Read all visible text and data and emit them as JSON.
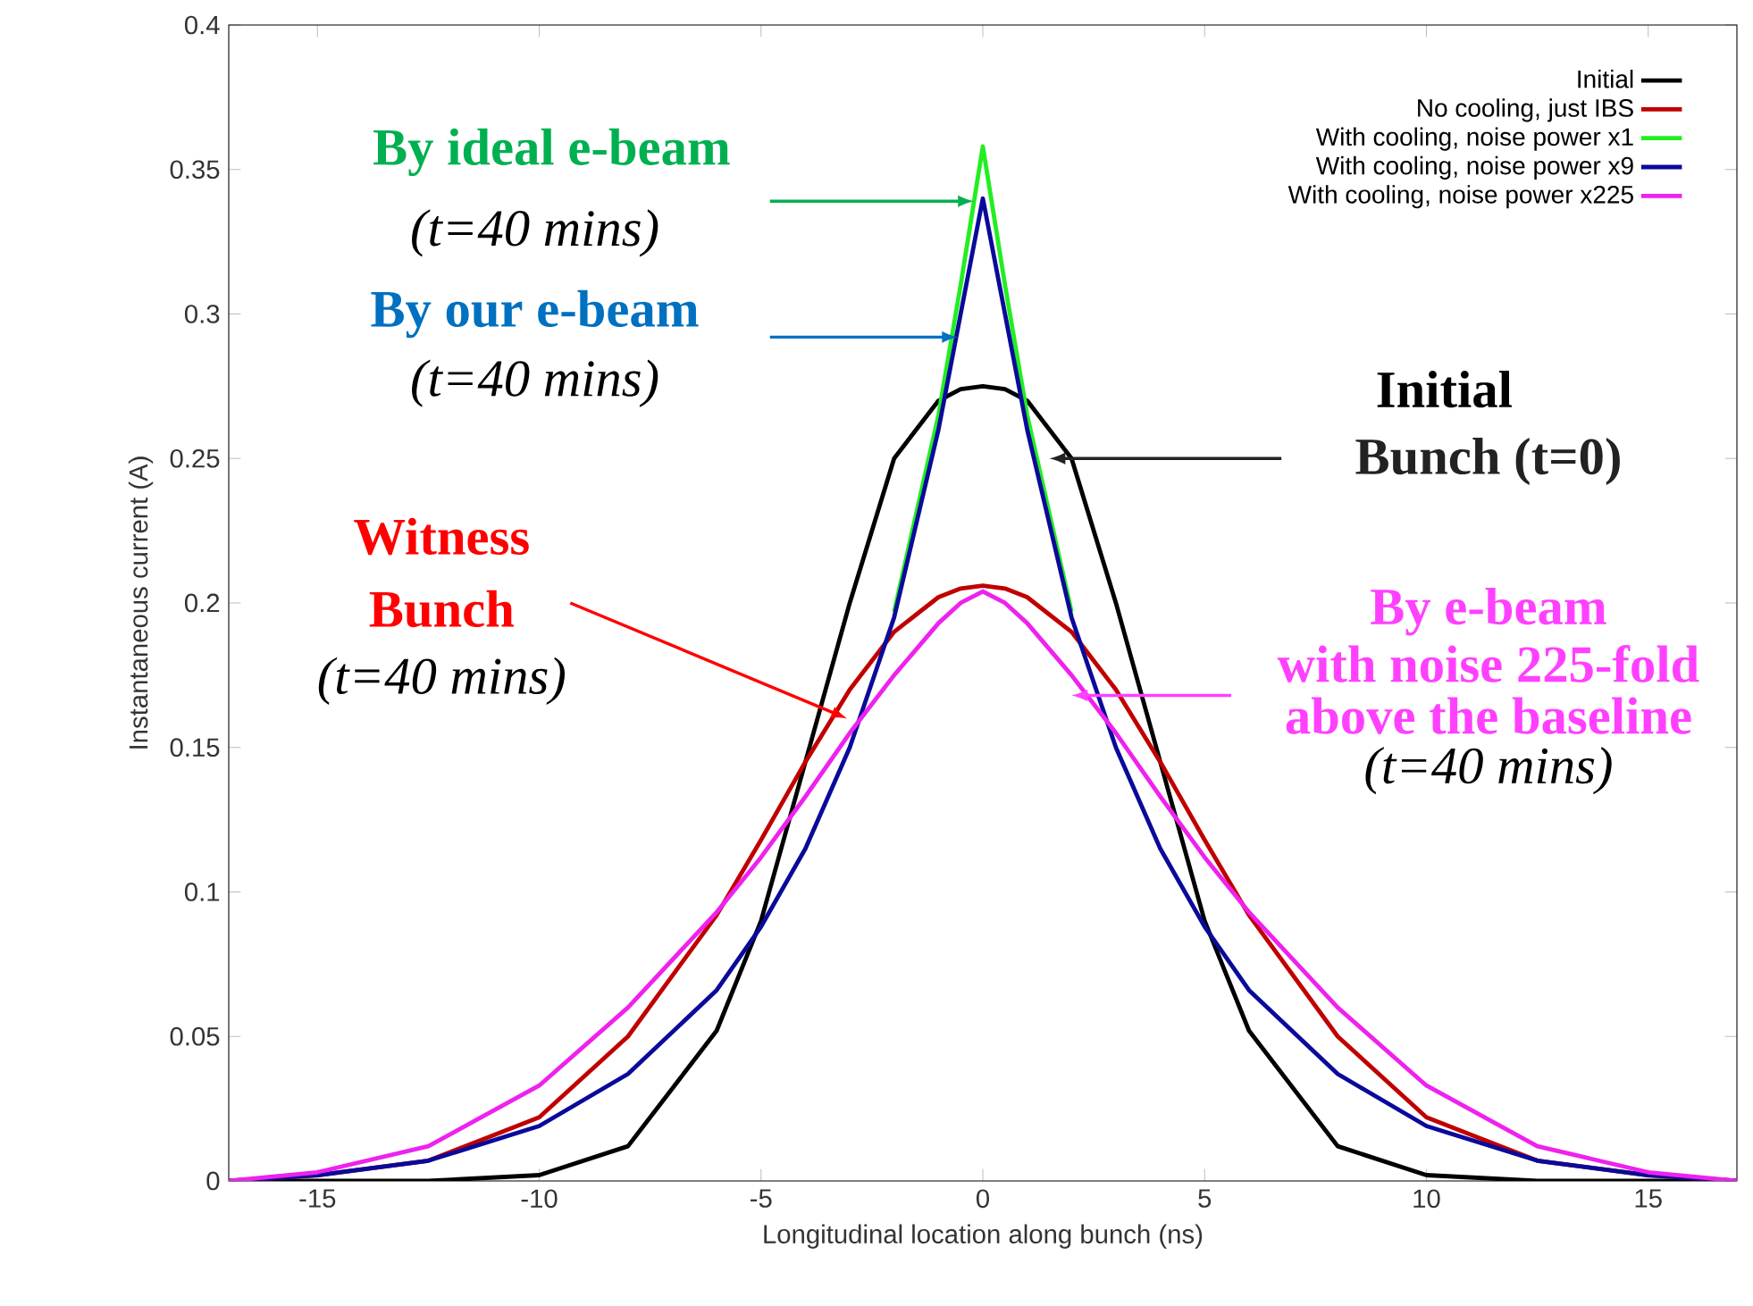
{
  "chart_data": {
    "type": "line",
    "xlabel": "Longitudinal location along bunch (ns)",
    "ylabel": "Instantaneous current (A)",
    "x": [
      -17,
      -15,
      -12.5,
      -10,
      -8,
      -6,
      -5,
      -4,
      -3,
      -2,
      -1,
      -0.5,
      0,
      0.5,
      1,
      2,
      3,
      4,
      5,
      6,
      8,
      10,
      12.5,
      15,
      17
    ],
    "series": [
      {
        "name": "Initial",
        "color": "#000000",
        "values": [
          0,
          0,
          0,
          0.002,
          0.012,
          0.052,
          0.09,
          0.145,
          0.2,
          0.25,
          0.27,
          0.274,
          0.275,
          0.274,
          0.27,
          0.25,
          0.2,
          0.145,
          0.09,
          0.052,
          0.012,
          0.002,
          0,
          0,
          0
        ]
      },
      {
        "name": "No cooling, just IBS",
        "color": "#c00000",
        "values": [
          0,
          0.002,
          0.007,
          0.022,
          0.05,
          0.092,
          0.118,
          0.145,
          0.17,
          0.19,
          0.202,
          0.205,
          0.206,
          0.205,
          0.202,
          0.19,
          0.17,
          0.145,
          0.118,
          0.092,
          0.05,
          0.022,
          0.007,
          0.002,
          0
        ]
      },
      {
        "name": "With cooling, noise power x1",
        "color": "#22ee22",
        "values": [
          null,
          null,
          null,
          null,
          null,
          null,
          null,
          null,
          null,
          0.197,
          0.265,
          0.31,
          0.358,
          0.31,
          0.265,
          0.197,
          null,
          null,
          null,
          null,
          null,
          null,
          null,
          null,
          null
        ]
      },
      {
        "name": "With cooling, noise power x9",
        "color": "#0a0a9a",
        "values": [
          0,
          0.002,
          0.007,
          0.019,
          0.037,
          0.066,
          0.088,
          0.115,
          0.15,
          0.195,
          0.26,
          0.3,
          0.34,
          0.3,
          0.26,
          0.195,
          0.15,
          0.115,
          0.088,
          0.066,
          0.037,
          0.019,
          0.007,
          0.002,
          0
        ]
      },
      {
        "name": "With cooling, noise power x225",
        "color": "#ee22ee",
        "values": [
          0,
          0.003,
          0.012,
          0.033,
          0.06,
          0.093,
          0.112,
          0.133,
          0.155,
          0.175,
          0.193,
          0.2,
          0.204,
          0.2,
          0.193,
          0.175,
          0.155,
          0.133,
          0.112,
          0.093,
          0.06,
          0.033,
          0.012,
          0.003,
          0
        ]
      }
    ],
    "xlim": [
      -17,
      17
    ],
    "ylim": [
      0,
      0.4
    ],
    "xticks": [
      -15,
      -10,
      -5,
      0,
      5,
      10,
      15
    ],
    "yticks": [
      0,
      0.05,
      0.1,
      0.15,
      0.2,
      0.25,
      0.3,
      0.35,
      0.4
    ],
    "legend": "top right",
    "line_style": "solid",
    "annotations": [
      {
        "text": "By ideal e-beam",
        "x": -0.2,
        "y": 0.339
      },
      "(t=40 mins)",
      "By our e-beam",
      "(t=40 mins)",
      "Initial",
      "Bunch (t=0)",
      "Witness",
      "Bunch",
      "(t=40 mins)",
      "By e-beam",
      "with noise 225-fold",
      "above the baseline",
      "(t=40 mins)"
    ]
  }
}
